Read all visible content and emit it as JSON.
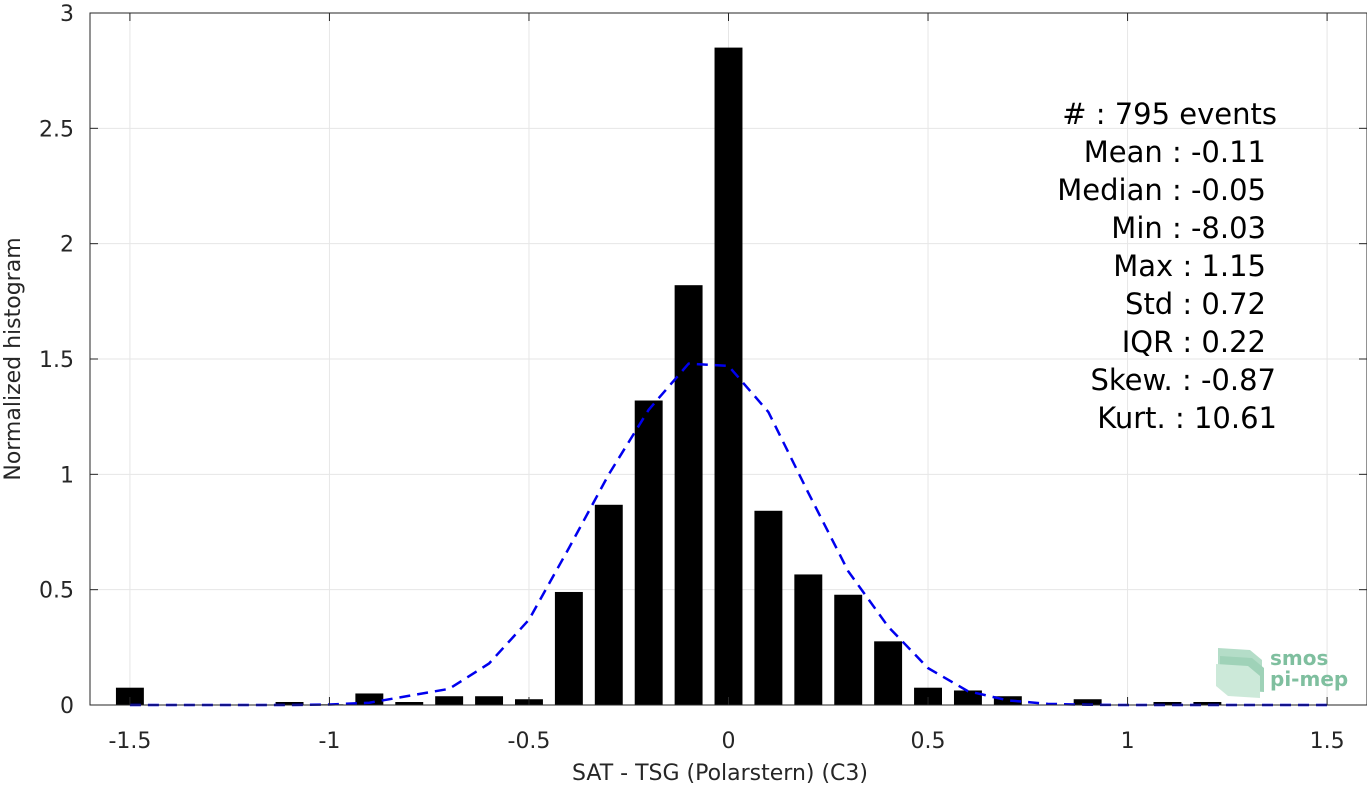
{
  "chart_data": {
    "type": "bar",
    "xlabel": "SAT - TSG (Polarstern) (C3)",
    "ylabel": "Normalized histogram",
    "xlim": [
      -1.6,
      1.6
    ],
    "ylim": [
      0,
      3
    ],
    "xticks": [
      -1.5,
      -1,
      -0.5,
      0,
      0.5,
      1,
      1.5
    ],
    "xtick_labels": [
      "-1.5",
      "-1",
      "-0.5",
      "0",
      "0.5",
      "1",
      "1.5"
    ],
    "yticks": [
      0,
      0.5,
      1,
      1.5,
      2,
      2.5,
      3
    ],
    "ytick_labels": [
      "0",
      "0.5",
      "1",
      "1.5",
      "2",
      "2.5",
      "3"
    ],
    "grid": true,
    "bar_color": "#000000",
    "bars": {
      "x": [
        -1.5,
        -1.4,
        -1.3,
        -1.2,
        -1.1,
        -1.0,
        -0.9,
        -0.8,
        -0.7,
        -0.6,
        -0.5,
        -0.4,
        -0.3,
        -0.2,
        -0.1,
        0.0,
        0.1,
        0.2,
        0.3,
        0.4,
        0.5,
        0.6,
        0.7,
        0.8,
        0.9,
        1.0,
        1.1,
        1.2,
        1.3,
        1.4,
        1.5
      ],
      "values": [
        0.075,
        0,
        0,
        0,
        0.013,
        0.003,
        0.05,
        0.013,
        0.038,
        0.038,
        0.025,
        0.49,
        0.868,
        1.32,
        1.82,
        2.85,
        0.842,
        0.566,
        0.478,
        0.276,
        0.075,
        0.063,
        0.038,
        0,
        0.025,
        0,
        0.013,
        0.013,
        0,
        0,
        0
      ]
    },
    "fit": {
      "color": "#0000ee",
      "style": "dashed",
      "x": [
        -1.5,
        -1.4,
        -1.3,
        -1.2,
        -1.1,
        -1.0,
        -0.9,
        -0.8,
        -0.7,
        -0.6,
        -0.5,
        -0.4,
        -0.3,
        -0.2,
        -0.1,
        0.0,
        0.1,
        0.2,
        0.3,
        0.4,
        0.5,
        0.6,
        0.7,
        0.8,
        0.9,
        1.0,
        1.1,
        1.2,
        1.3,
        1.4,
        1.5
      ],
      "values": [
        0,
        0,
        0,
        0,
        0,
        0.002,
        0.01,
        0.04,
        0.07,
        0.18,
        0.37,
        0.68,
        1.0,
        1.28,
        1.48,
        1.47,
        1.27,
        0.92,
        0.58,
        0.34,
        0.16,
        0.06,
        0.02,
        0.005,
        0.001,
        0,
        0,
        0,
        0,
        0,
        0
      ]
    },
    "stats": [
      "#  : 795 events",
      "Mean : -0.11",
      "Median : -0.05",
      "Min : -8.03",
      "Max : 1.15",
      "Std : 0.72",
      "IQR : 0.22",
      "Skew. : -0.87",
      "Kurt. : 10.61"
    ]
  },
  "logo": {
    "line1": "smos",
    "line2": "pi-mep",
    "color": "#7fbf9f"
  }
}
